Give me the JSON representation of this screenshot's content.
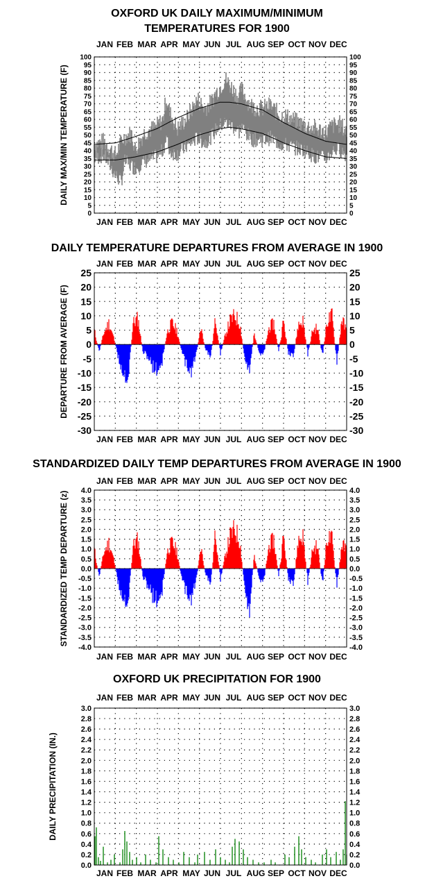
{
  "chart_data": [
    {
      "type": "line",
      "title_lines": [
        "OXFORD UK DAILY MAXIMUM/MINIMUM",
        "TEMPERATURES FOR 1900"
      ],
      "ylabel": "DAILY MAX/MIN TEMPERATURE (F)",
      "months": [
        "JAN",
        "FEB",
        "MAR",
        "APR",
        "MAY",
        "JUN",
        "JUL",
        "AUG",
        "SEP",
        "OCT",
        "NOV",
        "DEC"
      ],
      "ylim": [
        0,
        100
      ],
      "yticks": [
        0,
        5,
        10,
        15,
        20,
        25,
        30,
        35,
        40,
        45,
        50,
        55,
        60,
        65,
        70,
        75,
        80,
        85,
        90,
        95,
        100
      ],
      "grid": "dotted",
      "colors": {
        "observed": "#808080",
        "normals": "#000000"
      },
      "series": [
        {
          "role": "daily_max_observed",
          "x": [
            1,
            15,
            32,
            40,
            45,
            55,
            60,
            74,
            90,
            100,
            105,
            110,
            121,
            135,
            150,
            160,
            170,
            176,
            182,
            190,
            200,
            210,
            213,
            222,
            230,
            244,
            255,
            270,
            274,
            290,
            305,
            320,
            335,
            345,
            355,
            365
          ],
          "values": [
            44,
            46,
            37,
            46,
            49,
            51,
            41,
            52,
            55,
            60,
            74,
            64,
            54,
            61,
            73,
            67,
            71,
            77,
            80,
            86,
            80,
            74,
            80,
            72,
            68,
            67,
            69,
            62,
            63,
            59,
            56,
            54,
            52,
            56,
            57,
            52
          ]
        },
        {
          "role": "daily_min_observed",
          "x": [
            1,
            15,
            32,
            40,
            45,
            55,
            60,
            74,
            90,
            100,
            105,
            110,
            121,
            135,
            150,
            160,
            170,
            176,
            182,
            190,
            200,
            210,
            213,
            222,
            230,
            244,
            255,
            270,
            274,
            290,
            305,
            320,
            335,
            345,
            355,
            365
          ],
          "values": [
            35,
            37,
            24,
            20,
            33,
            30,
            29,
            33,
            36,
            40,
            48,
            39,
            38,
            43,
            48,
            45,
            49,
            53,
            56,
            58,
            56,
            52,
            56,
            50,
            47,
            47,
            48,
            44,
            44,
            42,
            40,
            36,
            35,
            40,
            41,
            37
          ]
        },
        {
          "role": "normal_max",
          "x": [
            1,
            32,
            60,
            91,
            121,
            152,
            182,
            196,
            213,
            244,
            274,
            305,
            335,
            365
          ],
          "values": [
            44,
            45,
            49,
            54,
            61,
            67,
            71,
            71,
            70,
            66,
            58,
            51,
            46,
            44
          ]
        },
        {
          "role": "normal_min",
          "x": [
            1,
            32,
            60,
            91,
            121,
            152,
            182,
            196,
            213,
            244,
            274,
            305,
            335,
            365
          ],
          "values": [
            34,
            34,
            36,
            39,
            44,
            50,
            54,
            55,
            54,
            51,
            45,
            40,
            36,
            35
          ]
        }
      ]
    },
    {
      "type": "bar",
      "title": "DAILY TEMPERATURE DEPARTURES FROM AVERAGE IN 1900",
      "ylabel": "DEPARTURE FROM AVERAGE (F)",
      "months": [
        "JAN",
        "FEB",
        "MAR",
        "APR",
        "MAY",
        "JUN",
        "JUL",
        "AUG",
        "SEP",
        "OCT",
        "NOV",
        "DEC"
      ],
      "ylim": [
        -30,
        25
      ],
      "yticks": [
        -30,
        -25,
        -20,
        -15,
        -10,
        -5,
        0,
        5,
        10,
        15,
        20,
        25
      ],
      "grid": "dotted",
      "colors": {
        "positive": "#ff0000",
        "negative": "#0000ff"
      },
      "x": [
        1,
        8,
        15,
        22,
        29,
        36,
        43,
        50,
        57,
        64,
        71,
        78,
        85,
        92,
        99,
        106,
        113,
        120,
        127,
        134,
        141,
        148,
        155,
        162,
        169,
        176,
        183,
        190,
        197,
        204,
        211,
        218,
        225,
        232,
        239,
        246,
        253,
        260,
        267,
        274,
        281,
        288,
        295,
        302,
        309,
        316,
        323,
        330,
        337,
        344,
        351,
        358,
        364
      ],
      "values": [
        6,
        -3,
        5,
        9,
        3,
        -6,
        -12,
        -14,
        9,
        11,
        -3,
        -5,
        -9,
        -11,
        -7,
        5,
        9,
        6,
        -3,
        -9,
        -11,
        -4,
        7,
        -3,
        -5,
        11,
        -4,
        4,
        10,
        12,
        9,
        -6,
        -10,
        5,
        -4,
        -3,
        7,
        9,
        -3,
        10,
        -4,
        -6,
        8,
        10,
        -4,
        6,
        7,
        -5,
        10,
        12,
        -8,
        11,
        6
      ]
    },
    {
      "type": "bar",
      "title": "STANDARDIZED DAILY TEMP DEPARTURES FROM AVERAGE IN 1900",
      "ylabel": "STANDARDIZED TEMP DEPARTURE (z)",
      "months": [
        "JAN",
        "FEB",
        "MAR",
        "APR",
        "MAY",
        "JUN",
        "JUL",
        "AUG",
        "SEP",
        "OCT",
        "NOV",
        "DEC"
      ],
      "ylim": [
        -4,
        4
      ],
      "ytick_labels": [
        "4.0",
        "3.5",
        "3.0",
        "2.5",
        "2.0",
        "1.5",
        "1.0",
        "0.5",
        "0.0",
        "-0.5",
        "-1.0",
        "-1.5",
        "-2.0",
        "-2.5",
        "-3.0",
        "-3.5",
        "-4.0"
      ],
      "grid": "dotted",
      "colors": {
        "positive": "#ff0000",
        "negative": "#0000ff"
      },
      "x": [
        1,
        8,
        15,
        22,
        29,
        36,
        43,
        50,
        57,
        64,
        71,
        78,
        85,
        92,
        99,
        106,
        113,
        120,
        127,
        134,
        141,
        148,
        155,
        162,
        169,
        176,
        183,
        190,
        197,
        204,
        211,
        218,
        225,
        232,
        239,
        246,
        253,
        260,
        267,
        274,
        281,
        288,
        295,
        302,
        309,
        316,
        323,
        330,
        337,
        344,
        351,
        358,
        364
      ],
      "values": [
        1.2,
        -0.5,
        1.0,
        1.6,
        0.6,
        -1.0,
        -1.8,
        -2.0,
        1.4,
        1.8,
        -0.5,
        -1.0,
        -1.6,
        -2.0,
        -1.3,
        1.0,
        1.6,
        1.1,
        -0.6,
        -1.5,
        -1.8,
        -0.7,
        1.3,
        -0.5,
        -0.9,
        2.3,
        -0.7,
        0.8,
        2.0,
        2.4,
        1.7,
        -1.2,
        -2.5,
        0.9,
        -0.7,
        -0.6,
        1.4,
        1.8,
        -0.5,
        2.0,
        -0.7,
        -1.2,
        1.7,
        2.0,
        -0.8,
        1.2,
        1.4,
        -1.0,
        1.9,
        1.8,
        -1.1,
        1.5,
        1.2
      ]
    },
    {
      "type": "bar",
      "title": "OXFORD UK PRECIPITATION FOR 1900",
      "ylabel": "DAILY PRECIPITATION (IN.)",
      "months": [
        "JAN",
        "FEB",
        "MAR",
        "APR",
        "MAY",
        "JUN",
        "JUL",
        "AUG",
        "SEP",
        "OCT",
        "NOV",
        "DEC"
      ],
      "ylim": [
        0,
        3
      ],
      "ytick_labels": [
        "0.0",
        "0.2",
        "0.4",
        "0.6",
        "0.8",
        "1.0",
        "1.2",
        "1.4",
        "1.6",
        "1.8",
        "2.0",
        "2.2",
        "2.4",
        "2.6",
        "2.8",
        "3.0"
      ],
      "grid": "dotted",
      "colors": {
        "bars": "#008000"
      },
      "x": [
        2,
        4,
        7,
        10,
        14,
        20,
        25,
        30,
        38,
        42,
        45,
        48,
        52,
        56,
        62,
        68,
        75,
        82,
        90,
        94,
        100,
        108,
        115,
        123,
        130,
        138,
        146,
        150,
        160,
        168,
        176,
        183,
        190,
        196,
        200,
        204,
        210,
        216,
        222,
        230,
        238,
        246,
        256,
        262,
        276,
        282,
        290,
        296,
        300,
        306,
        314,
        320,
        330,
        336,
        342,
        350,
        356,
        360,
        363,
        365
      ],
      "values": [
        0.55,
        0.72,
        0.15,
        0.08,
        0.35,
        0.05,
        0.1,
        0.2,
        0.05,
        0.3,
        0.65,
        0.45,
        0.25,
        0.1,
        0.15,
        0.05,
        0.2,
        0.1,
        0.05,
        0.55,
        0.3,
        0.15,
        0.1,
        0.05,
        0.25,
        0.15,
        0.05,
        0.2,
        0.25,
        0.1,
        0.3,
        0.15,
        0.1,
        0.05,
        0.35,
        0.5,
        0.45,
        0.3,
        0.15,
        0.1,
        0.05,
        0.05,
        0.1,
        0.05,
        0.2,
        0.15,
        0.35,
        0.55,
        0.3,
        0.15,
        0.1,
        0.05,
        0.2,
        0.3,
        0.15,
        0.25,
        0.1,
        0.3,
        1.22,
        0.2
      ]
    }
  ]
}
